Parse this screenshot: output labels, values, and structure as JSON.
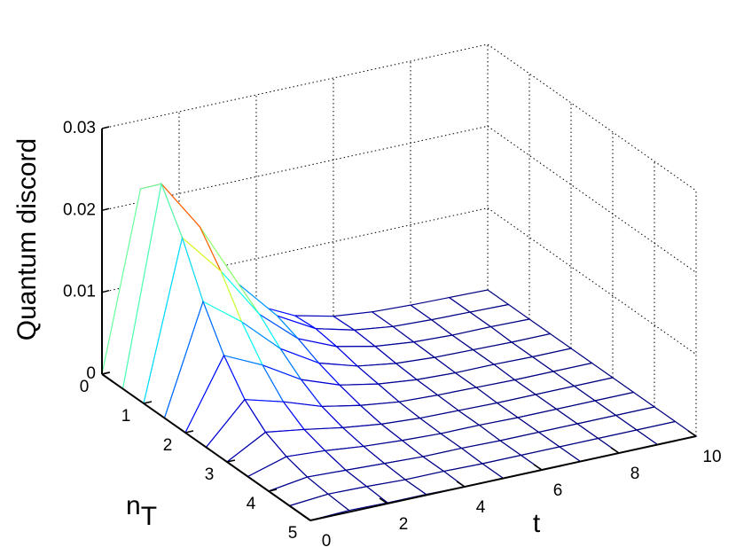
{
  "chart_data": {
    "type": "surface",
    "zlabel": "Quantum discord",
    "xlabel": "t",
    "ylabel": {
      "base": "n",
      "sub": "T"
    },
    "x": [
      0,
      1,
      2,
      3,
      4,
      5,
      6,
      7,
      8,
      9,
      10
    ],
    "y": [
      0,
      0.5,
      1,
      1.5,
      2,
      2.5,
      3,
      3.5,
      4,
      4.5,
      5
    ],
    "z": [
      [
        0,
        0.0216,
        0.0159,
        0.0088,
        0.0043,
        0.002,
        0.0009,
        0.0004,
        0.0002,
        0.0001,
        0
      ],
      [
        0,
        0.024,
        0.0177,
        0.0097,
        0.0048,
        0.0022,
        0.001,
        0.0004,
        0.0002,
        0.0001,
        0
      ],
      [
        0,
        0.0192,
        0.0141,
        0.0078,
        0.0038,
        0.0018,
        0.0008,
        0.0003,
        0.0001,
        0.0001,
        0
      ],
      [
        0,
        0.0132,
        0.0097,
        0.0054,
        0.0026,
        0.0012,
        0.0005,
        0.0002,
        0.0001,
        0,
        0
      ],
      [
        0,
        0.0084,
        0.0062,
        0.0034,
        0.0017,
        0.0008,
        0.0003,
        0.0001,
        0.0001,
        0,
        0
      ],
      [
        0,
        0.0048,
        0.0035,
        0.0019,
        0.001,
        0.0004,
        0.0002,
        0.0001,
        0,
        0,
        0
      ],
      [
        0,
        0.0026,
        0.0019,
        0.0011,
        0.0005,
        0.0002,
        0.0001,
        0,
        0,
        0,
        0
      ],
      [
        0,
        0.0014,
        0.0011,
        0.0006,
        0.0003,
        0.0001,
        0.0001,
        0,
        0,
        0,
        0
      ],
      [
        0,
        0.0007,
        0.0005,
        0.0003,
        0.0001,
        0.0001,
        0,
        0,
        0,
        0,
        0
      ],
      [
        0,
        0.0004,
        0.0003,
        0.0001,
        0.0001,
        0,
        0,
        0,
        0,
        0,
        0
      ],
      [
        0,
        0.0002,
        0.0001,
        0.0001,
        0,
        0,
        0,
        0,
        0,
        0,
        0
      ]
    ],
    "xlim": [
      0,
      10
    ],
    "ylim": [
      0,
      5
    ],
    "zlim": [
      0,
      0.03
    ],
    "xticks": [
      0,
      2,
      4,
      6,
      8,
      10
    ],
    "yticks": [
      0,
      1,
      2,
      3,
      4,
      5
    ],
    "zticks": [
      0,
      0.01,
      0.02,
      0.03
    ],
    "grid": true,
    "colormap": "jet"
  }
}
